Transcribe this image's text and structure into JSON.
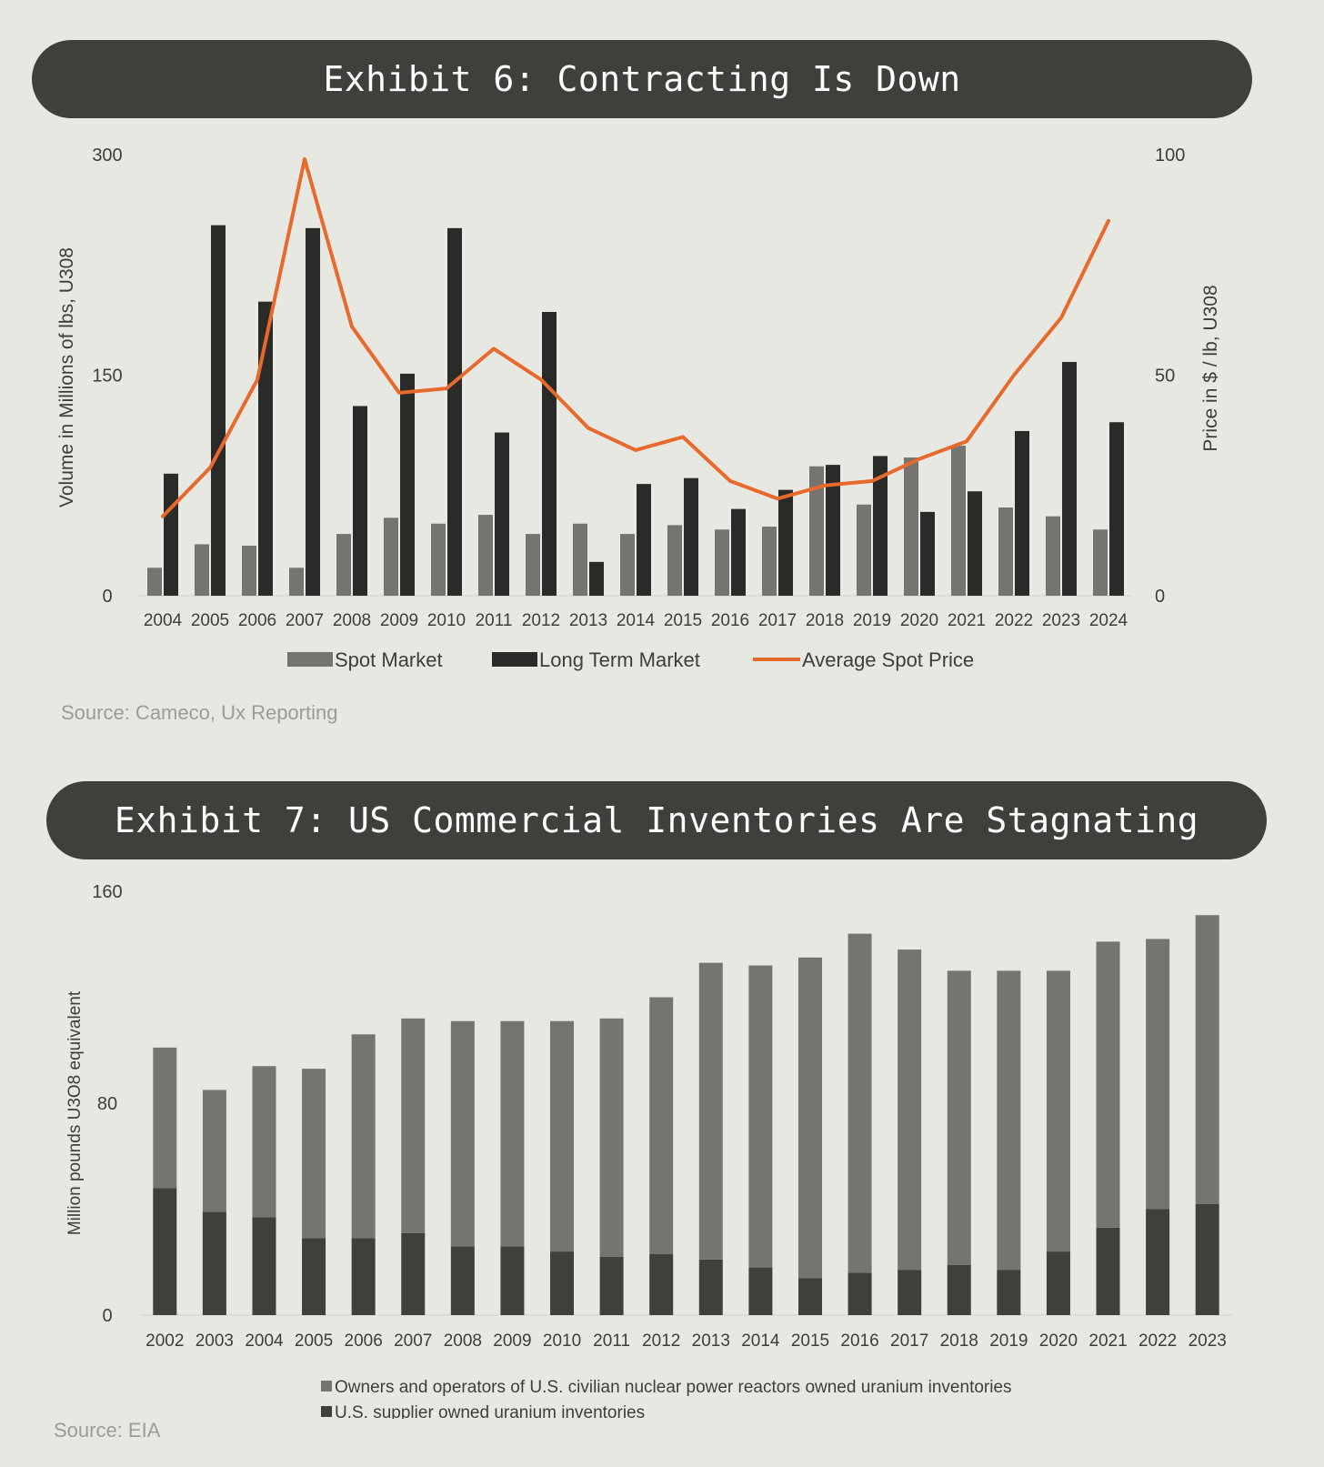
{
  "exhibit6": {
    "banner": "Exhibit 6: Contracting Is Down",
    "source": "Source: Cameco, Ux Reporting"
  },
  "exhibit7": {
    "banner": "Exhibit 7: US Commercial Inventories Are Stagnating",
    "source": "Source: EIA"
  },
  "colors": {
    "banner_bg": "#403f3c",
    "spot": "#76746e",
    "long_term": "#2a2a28",
    "price_line": "#e8692c",
    "owners": "#76746e",
    "supplier": "#403f3c"
  },
  "chart_data": [
    {
      "type": "bar+line",
      "title": "Exhibit 6: Contracting Is Down",
      "categories": [
        "2004",
        "2005",
        "2006",
        "2007",
        "2008",
        "2009",
        "2010",
        "2011",
        "2012",
        "2013",
        "2014",
        "2015",
        "2016",
        "2017",
        "2018",
        "2019",
        "2020",
        "2021",
        "2022",
        "2023",
        "2024"
      ],
      "series": [
        {
          "name": "Spot Market",
          "kind": "bar",
          "axis": "left",
          "values": [
            19,
            35,
            34,
            19,
            42,
            53,
            49,
            55,
            42,
            49,
            42,
            48,
            45,
            47,
            88,
            62,
            94,
            102,
            60,
            54,
            45
          ]
        },
        {
          "name": "Long Term Market",
          "kind": "bar",
          "axis": "left",
          "values": [
            83,
            252,
            200,
            250,
            129,
            151,
            250,
            111,
            193,
            23,
            76,
            80,
            59,
            72,
            89,
            95,
            57,
            71,
            112,
            159,
            118
          ]
        },
        {
          "name": "Average Spot Price",
          "kind": "line",
          "axis": "right",
          "values": [
            18,
            29,
            49,
            99,
            61,
            46,
            47,
            56,
            49,
            38,
            33,
            36,
            26,
            22,
            25,
            26,
            31,
            35,
            50,
            63,
            85
          ]
        }
      ],
      "ylabel_left": "Volume in Millions of lbs, U308",
      "ylabel_right": "Price in $ / lb, U308",
      "ylim_left": [
        0,
        300
      ],
      "ylim_right": [
        0,
        100
      ],
      "yticks_left": [
        "0",
        "150",
        "300"
      ],
      "yticks_right": [
        "0",
        "50",
        "100"
      ],
      "legend": [
        "Spot Market",
        "Long Term Market",
        "Average Spot Price"
      ],
      "legend_position": "bottom"
    },
    {
      "type": "bar",
      "stacked": true,
      "title": "Exhibit 7: US Commercial Inventories Are Stagnating",
      "categories": [
        "2002",
        "2003",
        "2004",
        "2005",
        "2006",
        "2007",
        "2008",
        "2009",
        "2010",
        "2011",
        "2012",
        "2013",
        "2014",
        "2015",
        "2016",
        "2017",
        "2018",
        "2019",
        "2020",
        "2021",
        "2022",
        "2023"
      ],
      "series": [
        {
          "name": "U.S. supplier owned uranium inventories",
          "values": [
            48,
            39,
            37,
            29,
            29,
            31,
            26,
            26,
            24,
            22,
            23,
            21,
            18,
            14,
            16,
            17,
            19,
            17,
            24,
            33,
            40,
            42
          ]
        },
        {
          "name": "Owners and operators of U.S. civilian nuclear power reactors owned uranium inventories",
          "values": [
            53,
            46,
            57,
            64,
            77,
            81,
            85,
            85,
            87,
            90,
            97,
            112,
            114,
            121,
            128,
            121,
            111,
            113,
            106,
            108,
            102,
            109
          ]
        }
      ],
      "ylabel": "Million pounds U3O8 equivalent",
      "ylim": [
        0,
        160
      ],
      "yticks": [
        "0",
        "80",
        "160"
      ],
      "legend": [
        "Owners and operators of U.S. civilian nuclear power reactors owned uranium inventories",
        "U.S. supplier owned uranium inventories"
      ],
      "legend_position": "bottom"
    }
  ]
}
